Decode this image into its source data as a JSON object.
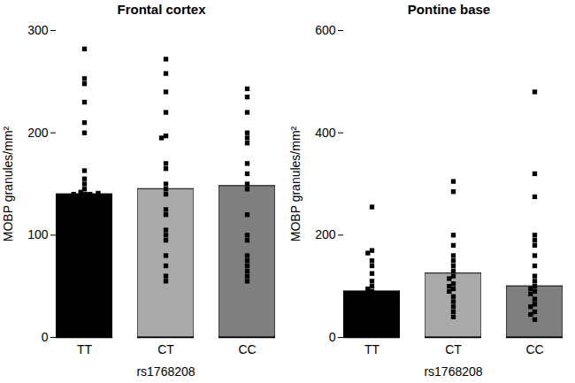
{
  "chart_data": [
    {
      "type": "bar",
      "title": "Frontal cortex",
      "x_label": "rs1768208",
      "y_label": "MOBP granules/mm²",
      "categories": [
        "TT",
        "CT",
        "CC"
      ],
      "values": [
        140,
        145,
        148
      ],
      "colors": [
        "#000000",
        "#aaaaaa",
        "#7f7f7f"
      ],
      "ylim": [
        0,
        300
      ],
      "yticks": [
        0,
        100,
        200,
        300
      ],
      "points": [
        [
          282,
          253,
          248,
          230,
          210,
          200,
          163,
          155,
          150,
          145,
          142,
          140,
          140,
          138,
          138,
          140,
          141
        ],
        [
          272,
          258,
          240,
          220,
          197,
          195,
          170,
          165,
          150,
          145,
          140,
          125,
          120,
          105,
          100,
          95,
          80,
          70,
          60,
          55
        ],
        [
          243,
          235,
          220,
          200,
          195,
          190,
          170,
          160,
          150,
          145,
          120,
          100,
          95,
          80,
          75,
          70,
          65,
          60,
          55
        ]
      ]
    },
    {
      "type": "bar",
      "title": "Pontine base",
      "x_label": "rs1768208",
      "y_label": "MOBP granules/mm²",
      "categories": [
        "TT",
        "CT",
        "CC"
      ],
      "values": [
        90,
        125,
        100
      ],
      "colors": [
        "#000000",
        "#aaaaaa",
        "#7f7f7f"
      ],
      "ylim": [
        0,
        600
      ],
      "yticks": [
        0,
        200,
        400,
        600
      ],
      "points": [
        [
          255,
          170,
          165,
          150,
          140,
          125,
          110,
          100,
          95,
          90,
          85,
          80,
          75,
          70,
          65,
          60,
          55,
          50,
          45,
          40,
          30
        ],
        [
          305,
          285,
          200,
          180,
          160,
          150,
          140,
          130,
          120,
          115,
          105,
          100,
          95,
          90,
          80,
          70,
          60,
          50,
          40
        ],
        [
          480,
          320,
          275,
          200,
          190,
          180,
          160,
          140,
          120,
          110,
          100,
          95,
          90,
          85,
          75,
          65,
          60,
          50,
          45,
          35
        ]
      ]
    }
  ]
}
